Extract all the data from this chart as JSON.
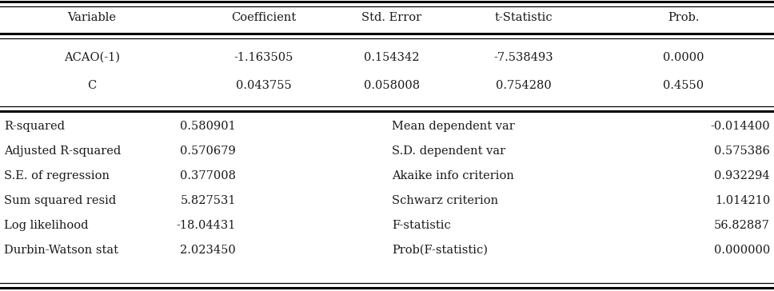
{
  "header": [
    "Variable",
    "Coefficient",
    "Std. Error",
    "t-Statistic",
    "Prob."
  ],
  "data_rows": [
    [
      "ACAO(-1)",
      "-1.163505",
      "0.154342",
      "-7.538493",
      "0.0000"
    ],
    [
      "C",
      "0.043755",
      "0.058008",
      "0.754280",
      "0.4550"
    ]
  ],
  "stats_left": [
    [
      "R-squared",
      "0.580901"
    ],
    [
      "Adjusted R-squared",
      "0.570679"
    ],
    [
      "S.E. of regression",
      "0.377008"
    ],
    [
      "Sum squared resid",
      "5.827531"
    ],
    [
      "Log likelihood",
      "-18.04431"
    ],
    [
      "Durbin-Watson stat",
      "2.023450"
    ]
  ],
  "stats_right": [
    [
      "Mean dependent var",
      "-0.014400"
    ],
    [
      "S.D. dependent var",
      "0.575386"
    ],
    [
      "Akaike info criterion",
      "0.932294"
    ],
    [
      "Schwarz criterion",
      "1.014210"
    ],
    [
      "F-statistic",
      "56.82887"
    ],
    [
      "Prob(F-statistic)",
      "0.000000"
    ]
  ],
  "font_size": 10.5,
  "text_color": "#1a1a1a",
  "fig_width": 9.68,
  "fig_height": 3.64,
  "dpi": 100
}
